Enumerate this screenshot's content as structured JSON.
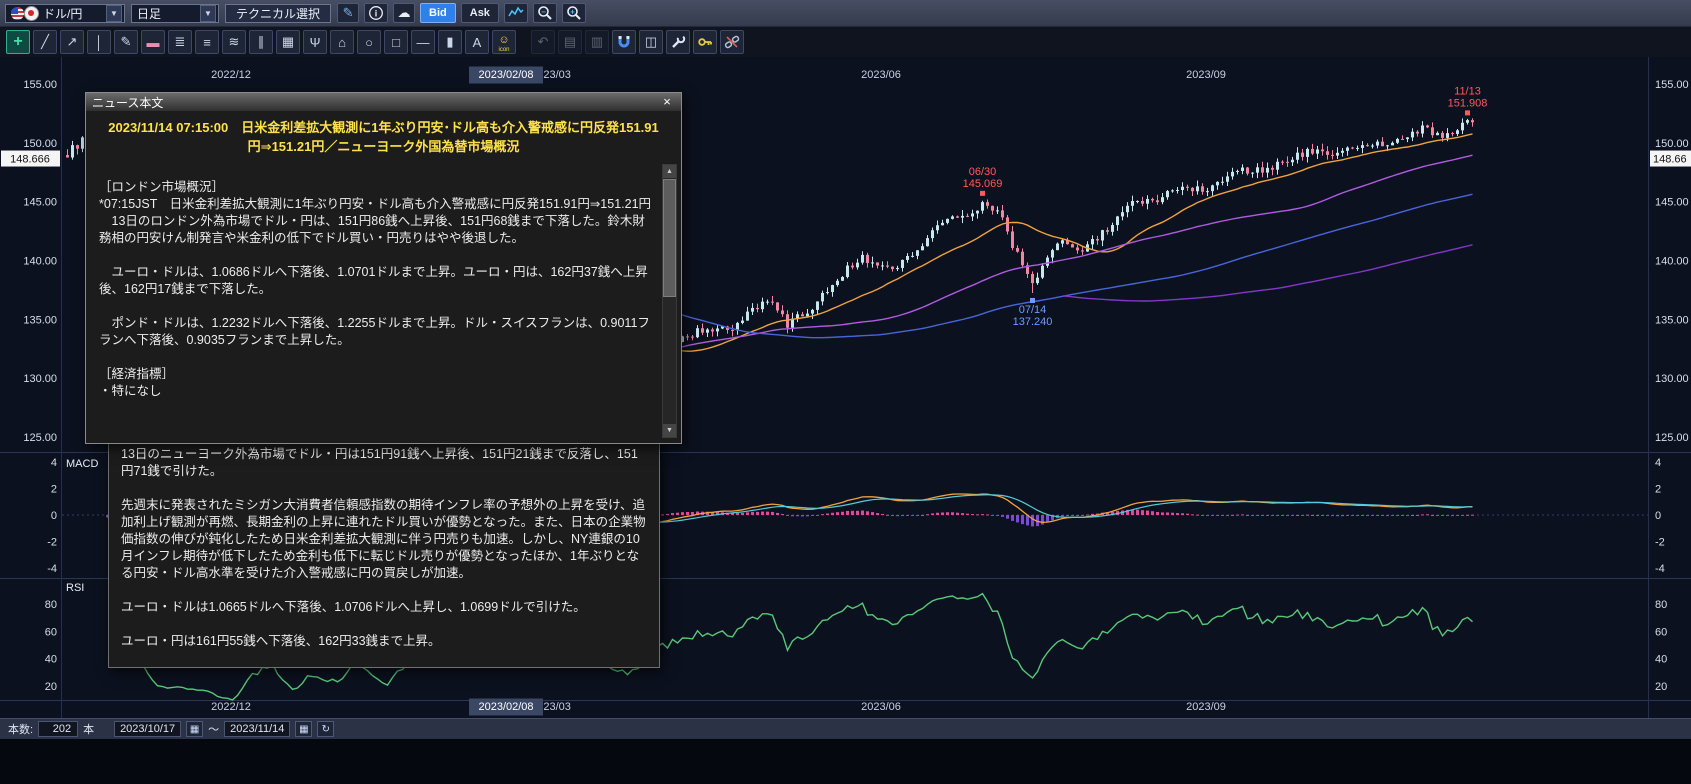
{
  "ui": {
    "caret": "▼",
    "scroll_up": "▲",
    "scroll_down": "▼",
    "calendar_glyph": "▦",
    "refresh_glyph": "↻"
  },
  "toolbar1": {
    "pair_value": "ドル/円",
    "timeframe_value": "日足",
    "technical_label": "テクニカル選択",
    "buttons": [
      {
        "name": "draw-pencil-button",
        "kind": "glyph",
        "glyph": "✎",
        "color": "#6cb2ff"
      },
      {
        "name": "info-button",
        "kind": "svg",
        "svg": "info"
      },
      {
        "name": "cloud-button",
        "kind": "glyph",
        "glyph": "☁",
        "color": "#e8edf6"
      },
      {
        "name": "bid-button",
        "kind": "text",
        "label": "Bid",
        "active": true
      },
      {
        "name": "ask-button",
        "kind": "text",
        "label": "Ask"
      },
      {
        "name": "chart-type-button",
        "kind": "svg",
        "svg": "sparkline"
      },
      {
        "name": "zoom-out-button",
        "kind": "svg",
        "svg": "magnifier",
        "sign": "−"
      },
      {
        "name": "zoom-in-button",
        "kind": "svg",
        "svg": "magnifier",
        "sign": "+"
      }
    ]
  },
  "toolbar2": {
    "tools": [
      {
        "name": "crosshair-tool",
        "glyph": "+",
        "selected": true
      },
      {
        "name": "trendline-tool",
        "glyph": "╱"
      },
      {
        "name": "ray-tool",
        "glyph": "↗"
      },
      {
        "name": "vertical-line-tool",
        "glyph": "│"
      },
      {
        "name": "pencil-tool",
        "glyph": "✎"
      },
      {
        "name": "eraser-tool",
        "glyph": "▬",
        "color": "#e890b0"
      },
      {
        "name": "fib-levels-tool",
        "glyph": "≣"
      },
      {
        "name": "horizontal-lines-tool",
        "glyph": "≡"
      },
      {
        "name": "wave-tool",
        "glyph": "≋"
      },
      {
        "name": "channel-tool",
        "glyph": "∥"
      },
      {
        "name": "grid-tool",
        "glyph": "▦"
      },
      {
        "name": "pitchfork-tool",
        "glyph": "Ψ"
      },
      {
        "name": "polygon-tool",
        "glyph": "⌂"
      },
      {
        "name": "ellipse-tool",
        "glyph": "○"
      },
      {
        "name": "rectangle-tool",
        "glyph": "□"
      },
      {
        "name": "horizontal-segment-tool",
        "glyph": "—"
      },
      {
        "name": "price-marker-tool",
        "glyph": "▮"
      },
      {
        "name": "text-tool",
        "glyph": "A"
      },
      {
        "name": "icon-stamp-tool",
        "glyph": "☺",
        "color": "#ffd84a",
        "label": "icon"
      },
      {
        "name": "undo-tool",
        "glyph": "↶",
        "disabled": true,
        "gap": true
      },
      {
        "name": "copy-chart-tool",
        "glyph": "▤",
        "disabled": true
      },
      {
        "name": "save-image-tool",
        "glyph": "▥",
        "disabled": true
      },
      {
        "name": "magnet-tool",
        "svg": "magnet"
      },
      {
        "name": "clear-all-tool",
        "glyph": "◫"
      },
      {
        "name": "settings-wrench-tool",
        "svg": "wrench"
      },
      {
        "name": "key-tool",
        "svg": "key"
      },
      {
        "name": "unlink-tool",
        "svg": "unlink"
      }
    ]
  },
  "chart_data": {
    "type": "candlestick",
    "pair": "ドル/円",
    "timeframe": "日足",
    "x_axis": {
      "labels": [
        {
          "text": "2022/12",
          "i": 33
        },
        {
          "text": "2023/02/08",
          "i": 88,
          "highlight": true
        },
        {
          "text": "2023/03",
          "i": 97
        },
        {
          "text": "2023/06",
          "i": 163
        },
        {
          "text": "2023/09",
          "i": 228
        }
      ]
    },
    "y_axis": {
      "ticks": [
        155,
        150,
        145,
        140,
        135,
        130,
        125
      ],
      "range": [
        125,
        155
      ],
      "current_price_value": 148.666,
      "current_price_label": "148.666",
      "current_price_right_label": "148.66"
    },
    "candles": {
      "count": 282,
      "anchors": [
        [
          0,
          149.1
        ],
        [
          3,
          150.2
        ],
        [
          5,
          147.3
        ],
        [
          11,
          148.5
        ],
        [
          15,
          146.3
        ],
        [
          18,
          141.0
        ],
        [
          23,
          140.2
        ],
        [
          28,
          138.8
        ],
        [
          33,
          135.3
        ],
        [
          36,
          136.8
        ],
        [
          41,
          137.4
        ],
        [
          45,
          131.9
        ],
        [
          49,
          132.9
        ],
        [
          54,
          131.1
        ],
        [
          58,
          132.6
        ],
        [
          64,
          127.9
        ],
        [
          68,
          129.9
        ],
        [
          73,
          130.2
        ],
        [
          78,
          131.3
        ],
        [
          81,
          131.4
        ],
        [
          86,
          133.0
        ],
        [
          93,
          136.3
        ],
        [
          97,
          135.9
        ],
        [
          101,
          137.3
        ],
        [
          105,
          133.3
        ],
        [
          110,
          131.3
        ],
        [
          113,
          130.8
        ],
        [
          118,
          132.6
        ],
        [
          123,
          133.4
        ],
        [
          128,
          134.3
        ],
        [
          133,
          133.9
        ],
        [
          137,
          135.9
        ],
        [
          140,
          136.7
        ],
        [
          144,
          134.6
        ],
        [
          149,
          136.0
        ],
        [
          154,
          138.6
        ],
        [
          159,
          140.3
        ],
        [
          163,
          139.4
        ],
        [
          167,
          139.8
        ],
        [
          171,
          141.5
        ],
        [
          175,
          143.3
        ],
        [
          179,
          143.8
        ],
        [
          183,
          144.8
        ],
        [
          186,
          144.4
        ],
        [
          189,
          141.4
        ],
        [
          193,
          138.1
        ],
        [
          198,
          141.5
        ],
        [
          203,
          141.1
        ],
        [
          208,
          142.6
        ],
        [
          213,
          144.8
        ],
        [
          218,
          145.3
        ],
        [
          223,
          146.3
        ],
        [
          228,
          146.1
        ],
        [
          233,
          147.6
        ],
        [
          238,
          147.7
        ],
        [
          243,
          148.3
        ],
        [
          248,
          149.3
        ],
        [
          253,
          149.1
        ],
        [
          258,
          149.6
        ],
        [
          263,
          149.8
        ],
        [
          268,
          150.3
        ],
        [
          271,
          151.5
        ],
        [
          274,
          150.5
        ],
        [
          277,
          151.0
        ],
        [
          280,
          151.7
        ],
        [
          281,
          151.5
        ]
      ],
      "up_color": "#c6e7ee",
      "down_color": "#f0879f"
    },
    "overlays": [
      {
        "name": "MA-short",
        "period": 20,
        "color": "#f0a23c"
      },
      {
        "name": "MA-mid",
        "period": 60,
        "color": "#b05ce0"
      },
      {
        "name": "MA-long",
        "period": 120,
        "color": "#4766d6"
      },
      {
        "name": "MA-longest",
        "period": 200,
        "color": "#8038c8"
      }
    ],
    "annotations": [
      {
        "i": 183,
        "date": "06/30",
        "price": "145.069",
        "value": 145.069,
        "side": "above",
        "color": "#ff5a5a"
      },
      {
        "i": 193,
        "date": "07/14",
        "price": "137.240",
        "value": 137.24,
        "side": "below",
        "color": "#6f9aff"
      },
      {
        "i": 280,
        "date": "11/13",
        "price": "151.908",
        "value": 151.908,
        "side": "above",
        "color": "#ff5a5a"
      }
    ],
    "panels": {
      "macd": {
        "label": "MACD",
        "ticks": [
          4,
          2,
          0,
          -2,
          -4
        ],
        "line_color": "#f0a23c",
        "signal_color": "#53cbd8",
        "hist_pos_color": "#e0489a",
        "hist_neg_color": "#7e48d8"
      },
      "rsi": {
        "label": "RSI",
        "ticks": [
          80,
          60,
          40,
          20
        ],
        "color": "#58c878"
      }
    }
  },
  "news_window": {
    "title": "ニュース本文",
    "close_glyph": "×",
    "headline": "2023/11/14 07:15:00　日米金利差拡大観測に1年ぶり円安･ドル高も介入警戒感に円反発151.91円⇒151.21円／ニューヨーク外国為替市場概況",
    "paragraphs": [
      "",
      "［ロンドン市場概況］",
      "*07:15JST　日米金利差拡大観測に1年ぶり円安・ドル高も介入警戒感に円反発151.91円⇒151.21円",
      "　13日のロンドン外為市場でドル・円は、151円86銭へ上昇後、151円68銭まで下落した。鈴木財務相の円安けん制発言や米金利の低下でドル買い・円売りはやや後退した。",
      "",
      "　ユーロ・ドルは、1.0686ドルへ下落後、1.0701ドルまで上昇。ユーロ・円は、162円37銭へ上昇後、162円17銭まで下落した。",
      "",
      "　ポンド・ドルは、1.2232ドルへ下落後、1.2255ドルまで上昇。ドル・スイスフランは、0.9011フランへ下落後、0.9035フランまで上昇した。",
      "",
      "［経済指標］",
      "・特になし"
    ]
  },
  "news_window2": {
    "paragraphs": [
      "13日のニューヨーク外為市場でドル・円は151円91銭へ上昇後、151円21銭まで反落し、151円71銭で引けた。",
      "",
      "先週末に発表されたミシガン大消費者信頼感指数の期待インフレ率の予想外の上昇を受け、追加利上げ観測が再燃、長期金利の上昇に連れたドル買いが優勢となった。また、日本の企業物価指数の伸びが鈍化したため日米金利差拡大観測に伴う円売りも加速。しかし、NY連銀の10月インフレ期待が低下したため金利も低下に転じドル売りが優勢となったほか、1年ぶりとなる円安・ドル高水準を受けた介入警戒感に円の買戻しが加速。",
      "",
      "ユーロ・ドルは1.0665ドルへ下落後、1.0706ドルへ上昇し、1.0699ドルで引けた。",
      "",
      "ユーロ・円は161円55銭へ下落後、162円33銭まで上昇。"
    ]
  },
  "status_bar": {
    "count_label": "本数:",
    "count_value": "202",
    "count_unit": "本",
    "date_from": "2023/10/17",
    "range_separator": "～",
    "date_to": "2023/11/14"
  }
}
